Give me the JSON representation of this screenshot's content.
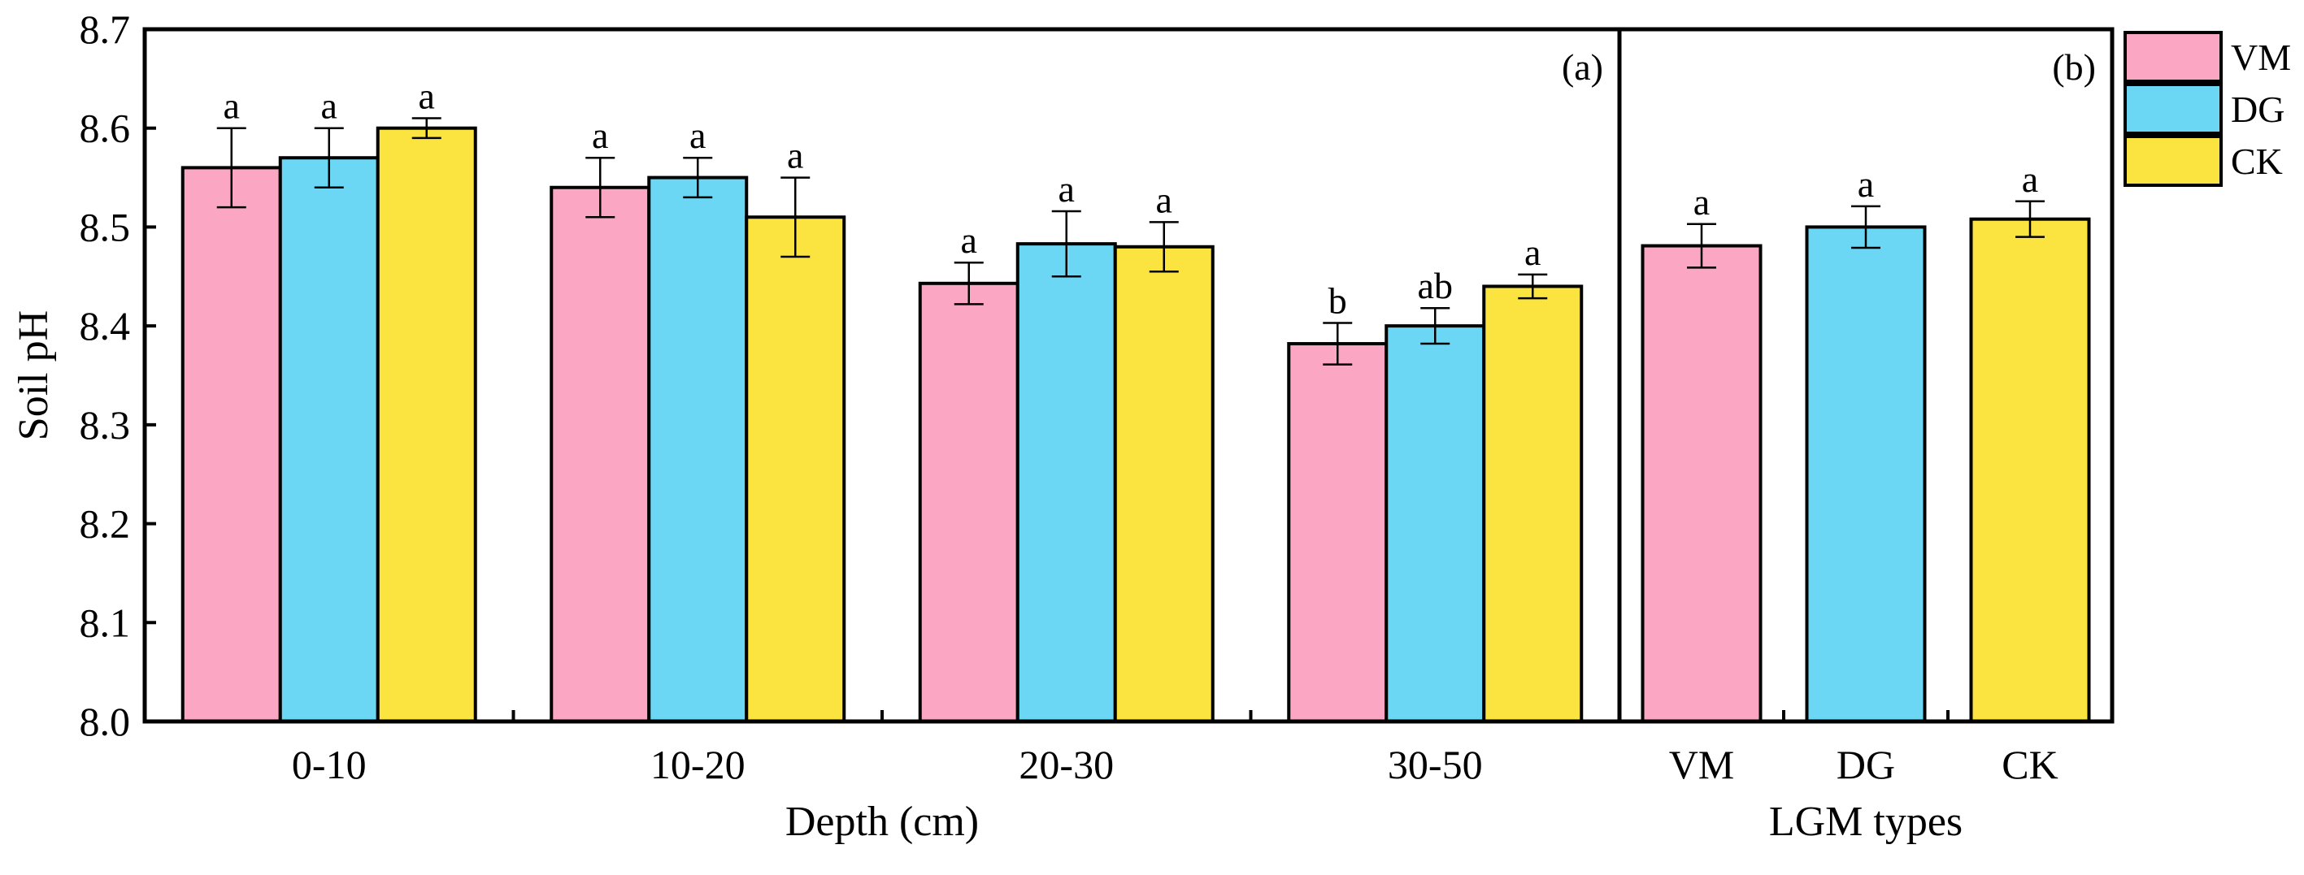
{
  "colors": {
    "VM": "#fba7c4",
    "DG": "#6cd7f5",
    "CK": "#fce440",
    "axis": "#000000"
  },
  "chart_data": [
    {
      "id": "a",
      "type": "bar",
      "panel_label": "(a)",
      "xlabel": "Depth (cm)",
      "ylabel": "Soil pH",
      "ylim": [
        8.0,
        8.7
      ],
      "yticks": [
        "8.0",
        "8.1",
        "8.2",
        "8.3",
        "8.4",
        "8.5",
        "8.6",
        "8.7"
      ],
      "categories": [
        "0-10",
        "10-20",
        "20-30",
        "30-50"
      ],
      "series": [
        {
          "name": "VM",
          "values": [
            8.56,
            8.54,
            8.443,
            8.382
          ],
          "errors": [
            0.04,
            0.03,
            0.021,
            0.021
          ],
          "labels": [
            "a",
            "a",
            "a",
            "b"
          ]
        },
        {
          "name": "DG",
          "values": [
            8.57,
            8.55,
            8.483,
            8.4
          ],
          "errors": [
            0.03,
            0.02,
            0.033,
            0.018
          ],
          "labels": [
            "a",
            "a",
            "a",
            "ab"
          ]
        },
        {
          "name": "CK",
          "values": [
            8.6,
            8.51,
            8.48,
            8.44
          ],
          "errors": [
            0.01,
            0.04,
            0.025,
            0.012
          ],
          "labels": [
            "a",
            "a",
            "a",
            "a"
          ]
        }
      ]
    },
    {
      "id": "b",
      "type": "bar",
      "panel_label": "(b)",
      "xlabel": "LGM types",
      "ylim": [
        8.0,
        8.7
      ],
      "categories": [
        "VM",
        "DG",
        "CK"
      ],
      "values": [
        8.481,
        8.5,
        8.508
      ],
      "errors": [
        0.022,
        0.021,
        0.018
      ],
      "labels": [
        "a",
        "a",
        "a"
      ]
    }
  ],
  "legend": {
    "position": "top-right",
    "entries": [
      "VM",
      "DG",
      "CK"
    ]
  }
}
